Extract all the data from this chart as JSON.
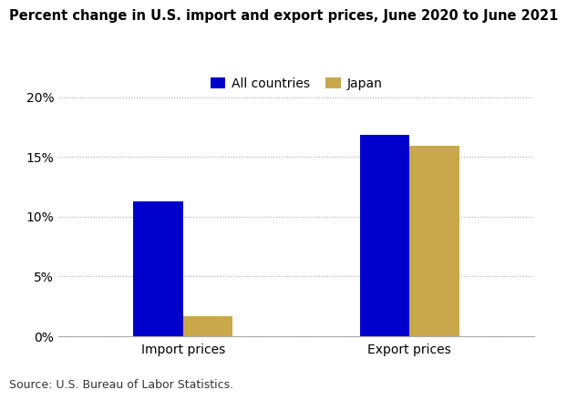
{
  "title": "Percent change in U.S. import and export prices, June 2020 to June 2021",
  "categories": [
    "Import prices",
    "Export prices"
  ],
  "series": [
    {
      "label": "All countries",
      "color": "#0000CC",
      "values": [
        11.3,
        16.8
      ]
    },
    {
      "label": "Japan",
      "color": "#C9A84C",
      "values": [
        1.7,
        15.9
      ]
    }
  ],
  "ylim": [
    0,
    20
  ],
  "yticks": [
    0,
    5,
    10,
    15,
    20
  ],
  "ytick_labels": [
    "0%",
    "5%",
    "10%",
    "15%",
    "20%"
  ],
  "bar_width": 0.22,
  "source_text": "Source: U.S. Bureau of Labor Statistics.",
  "background_color": "#FFFFFF",
  "grid_color": "#AAAAAA",
  "title_fontsize": 10.5,
  "legend_fontsize": 10,
  "tick_fontsize": 10,
  "source_fontsize": 9
}
